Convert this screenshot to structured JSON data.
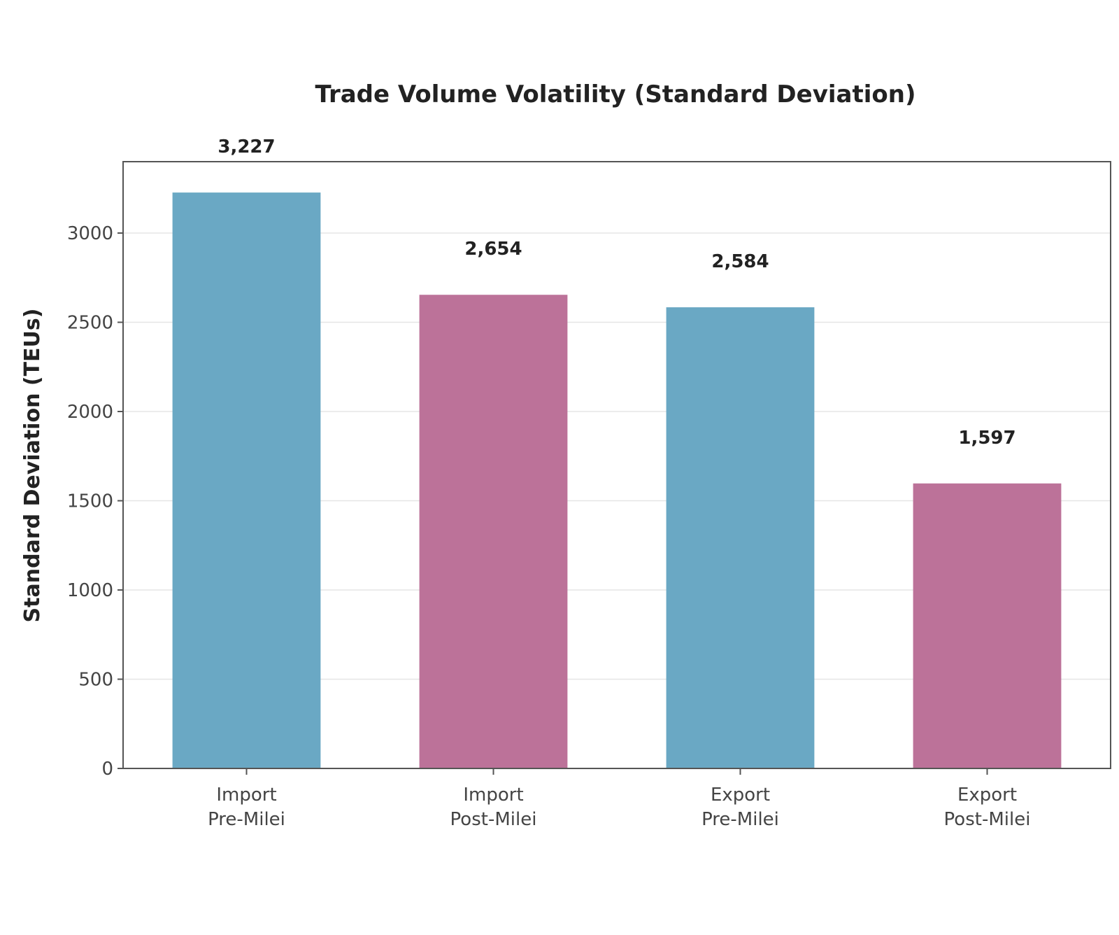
{
  "chart_data": {
    "type": "bar",
    "title": "Trade Volume Volatility (Standard Deviation)",
    "ylabel": "Standard Deviation (TEUs)",
    "xlabel": "",
    "ylim": [
      0,
      3400
    ],
    "yticks": [
      0,
      500,
      1000,
      1500,
      2000,
      2500,
      3000
    ],
    "grid": true,
    "categories": [
      [
        "Import",
        "Pre-Milei"
      ],
      [
        "Import",
        "Post-Milei"
      ],
      [
        "Export",
        "Pre-Milei"
      ],
      [
        "Export",
        "Post-Milei"
      ]
    ],
    "values": [
      3227,
      2654,
      2584,
      1597
    ],
    "data_labels": [
      "3,227",
      "2,654",
      "2,584",
      "1,597"
    ],
    "colors": [
      "#6aa8c4",
      "#bc7299",
      "#6aa8c4",
      "#bc7299"
    ]
  }
}
